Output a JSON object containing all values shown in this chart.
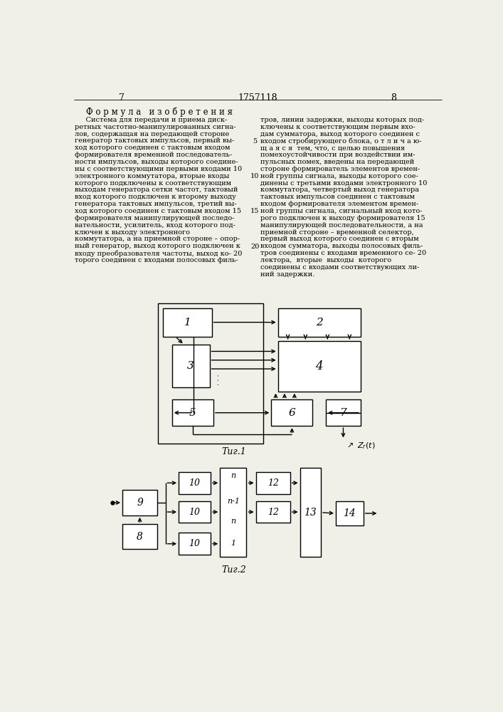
{
  "page_number_left": "7",
  "page_number_center": "1757118",
  "page_number_right": "8",
  "formula_title": "Ф о р м у л а   и з о б р е т е н и я",
  "left_text": [
    "     Система для передачи и приема диск-",
    "ретных частотно-манипулированных сигна-",
    "лов, содержащая на передающей стороне",
    "генератор тактовых импульсов, первый вы-",
    "ход которого соединен с тактовым входом",
    "формирователя временной последователь-",
    "ности импульсов, выходы которого соедине-",
    "ны с соответствующими первыми входами 10",
    "электронного коммутатора, вторые входы",
    "которого подключены к соответствующим",
    "выходам генератора сетки частот, тактовый",
    "вход которого подключен к второму выходу",
    "генератора тактовых импульсов, третий вы-",
    "ход которого соединен с тактовым входом 15",
    "формирователя манипулирующей последо-",
    "вательности, усилитель, вход которого под-",
    "ключен к выходу электронного",
    "коммутатора, а на приемной стороне – опор-",
    "ный генератор, выход которого подключен к",
    "входу преобразователя частоты, выход ко- 20",
    "торого соединен с входами полосовых филь-"
  ],
  "right_text": [
    "тров, линии задержки, выходы которых под-",
    "ключены к соответствующим первым вхо-",
    "дам сумматора, выход которого соединен с",
    "входом стробирующего блока, о т л и ч а ю-",
    "щ а я с я  тем, что, с целью повышения",
    "помехоустойчивости при воздействии им-",
    "пульсных помех, введены на передающей",
    "стороне формирователь элементов времен-",
    "ной группы сигнала, выходы которого сое-",
    "динены с третьими входами электронного 10",
    "коммутатора, четвертый выход генератора",
    "тактовых импульсов соединен с тактовым",
    "входом формирователя элементом времен-",
    "ной группы сигнала, сигнальный вход кото-",
    "рого подключен к выходу формирователя 15",
    "манипулирующей последовательности, а на",
    "приемной стороне – временной селектор,",
    "первый выход которого соединен с вторым",
    "входом сумматора, выходы полосовых филь-",
    "тров соединены с входами временного се- 20",
    "лектора,  вторые  выходы  которого",
    "соединены с входами соответствующих ли-",
    "ний задержки."
  ],
  "bg_color": "#f0efe8"
}
